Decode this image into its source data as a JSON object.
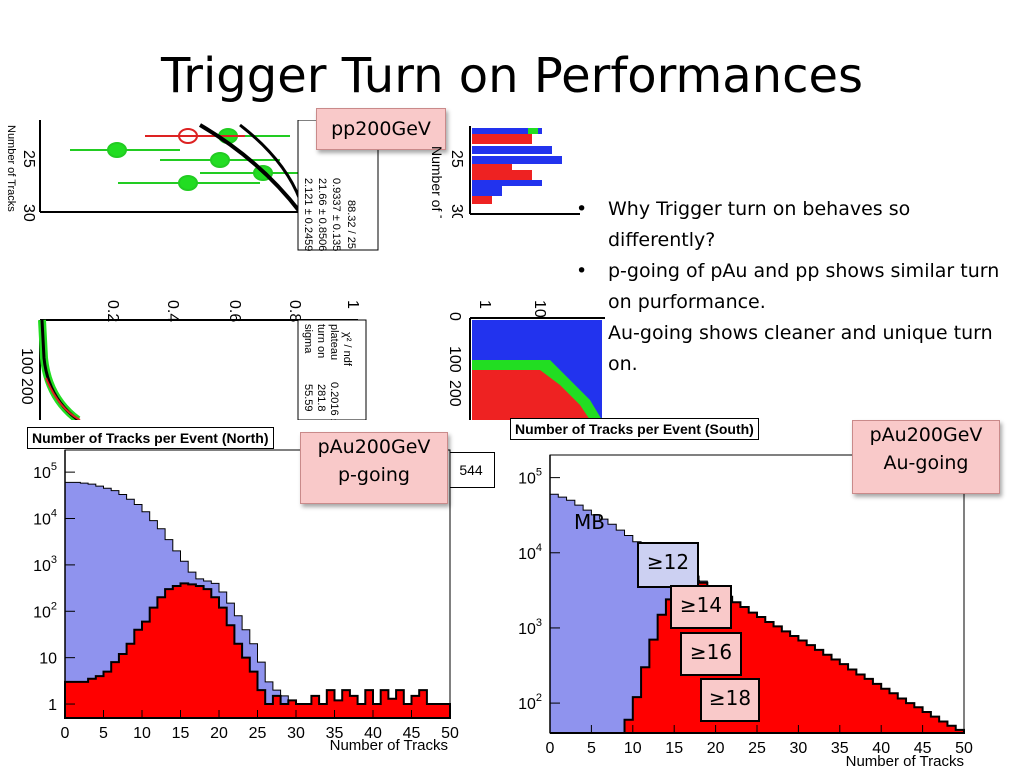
{
  "title": "Trigger Turn on Performances",
  "labels": {
    "pp": "pp200GeV",
    "north_line1": "pAu200GeV",
    "north_line2": "p-going",
    "south_line1": "pAu200GeV",
    "south_line2": "Au-going",
    "mb": "MB",
    "t12": "≥12",
    "t14": "≥14",
    "t16": "≥16",
    "t18": "≥18",
    "north_stat": "544"
  },
  "bullets": [
    "Why Trigger turn on behaves so differently?",
    "p-going of pAu and pp shows similar turn on purformance.",
    "Au-going shows cleaner and unique turn on."
  ],
  "fragments": {
    "ylabel_tracks": "Number of Tracks",
    "fit1": "88.32 / 25",
    "fit2": "0.9337 ± 0.135",
    "fit3": "21.66 ± 0.8506",
    "fit4": "2.121 ± 0.2459",
    "chi2": "χ² / ndf",
    "plateau": "plateau",
    "turnon": "turn on",
    "sigma": "sigma",
    "plateau_val": "0.2016 ± 0.",
    "turnon_val": "281.8",
    "sigma_val": "55.59"
  },
  "colors": {
    "mb_fill": "#8f93ee",
    "trig_fill": "#ff0000",
    "callout_bg": "#f9c9c9",
    "threshold_blue": "#ccd0f2",
    "fit_green": "#22dd22"
  },
  "chart_data": [
    {
      "type": "area",
      "title": "Number of Tracks per Event (North)",
      "xlabel": "Number of Tracks",
      "ylabel": "",
      "xlim": [
        0,
        50
      ],
      "y_scale": "log",
      "ylim": [
        0.5,
        300000
      ],
      "x_ticks": [
        "0",
        "5",
        "10",
        "15",
        "20",
        "25",
        "30",
        "35",
        "40",
        "45",
        "50"
      ],
      "y_ticks": [
        "1",
        "10",
        "10^2",
        "10^3",
        "10^4",
        "10^5"
      ],
      "x": [
        0,
        1,
        2,
        3,
        4,
        5,
        6,
        7,
        8,
        9,
        10,
        11,
        12,
        13,
        14,
        15,
        16,
        17,
        18,
        19,
        20,
        21,
        22,
        23,
        24,
        25,
        26,
        27,
        28,
        29,
        30,
        31,
        32,
        33,
        34,
        35,
        36,
        37,
        38,
        39,
        40,
        41,
        42,
        43,
        44,
        45,
        46,
        47,
        48,
        49
      ],
      "series": [
        {
          "name": "MB",
          "values": [
            60000,
            60000,
            58000,
            55000,
            50000,
            45000,
            40000,
            33000,
            26000,
            20000,
            14000,
            9000,
            6000,
            3500,
            2000,
            1200,
            700,
            500,
            450,
            400,
            260,
            150,
            80,
            40,
            20,
            8,
            3,
            2,
            1.5,
            1.2,
            1,
            1,
            1.5,
            1,
            2,
            1.2,
            2,
            1.5,
            1,
            2,
            1,
            2,
            1.3,
            2,
            1,
            1.5,
            2,
            1,
            1,
            1
          ]
        },
        {
          "name": "≥12",
          "values": [
            3,
            3,
            3,
            3.5,
            4,
            5,
            8,
            12,
            20,
            40,
            60,
            120,
            200,
            300,
            350,
            400,
            380,
            350,
            300,
            200,
            120,
            50,
            20,
            10,
            5,
            2,
            1,
            1.5,
            1,
            1.2,
            1,
            1,
            1.5,
            1,
            2,
            1.2,
            2,
            1.5,
            1,
            2,
            1,
            2,
            1.3,
            2,
            1,
            1.5,
            2,
            1,
            1,
            1
          ]
        }
      ]
    },
    {
      "type": "area",
      "title": "Number of Tracks per Event (South)",
      "xlabel": "Number of Tracks",
      "ylabel": "",
      "xlim": [
        0,
        50
      ],
      "y_scale": "log",
      "ylim": [
        40,
        200000
      ],
      "x_ticks": [
        "0",
        "5",
        "10",
        "15",
        "20",
        "25",
        "30",
        "35",
        "40",
        "45",
        "50"
      ],
      "y_ticks": [
        "10^2",
        "10^3",
        "10^4",
        "10^5"
      ],
      "x": [
        0,
        1,
        2,
        3,
        4,
        5,
        6,
        7,
        8,
        9,
        10,
        11,
        12,
        13,
        14,
        15,
        16,
        17,
        18,
        19,
        20,
        21,
        22,
        23,
        24,
        25,
        26,
        27,
        28,
        29,
        30,
        31,
        32,
        33,
        34,
        35,
        36,
        37,
        38,
        39,
        40,
        41,
        42,
        43,
        44,
        45,
        46,
        47,
        48,
        49
      ],
      "series": [
        {
          "name": "MB",
          "values": [
            60000,
            55000,
            50000,
            43000,
            37000,
            32000,
            28000,
            24000,
            20000,
            17000,
            14000,
            12000,
            10500,
            9000,
            7700,
            6600,
            5700,
            4900,
            4200,
            3600,
            3000,
            2600,
            2200,
            1900,
            1600,
            1400,
            1200,
            1050,
            900,
            780,
            680,
            590,
            510,
            440,
            380,
            330,
            280,
            240,
            210,
            180,
            155,
            135,
            115,
            100,
            88,
            76,
            66,
            57,
            50,
            44
          ]
        },
        {
          "name": "≥12",
          "values": [
            40,
            40,
            40,
            40,
            40,
            40,
            40,
            40,
            40,
            60,
            120,
            300,
            700,
            1500,
            2400,
            3400,
            4000,
            4200,
            4000,
            3600,
            3000,
            2600,
            2200,
            1900,
            1600,
            1400,
            1200,
            1050,
            900,
            780,
            680,
            590,
            510,
            440,
            380,
            330,
            280,
            240,
            210,
            180,
            155,
            135,
            115,
            100,
            88,
            76,
            66,
            57,
            50,
            44
          ]
        }
      ]
    }
  ]
}
